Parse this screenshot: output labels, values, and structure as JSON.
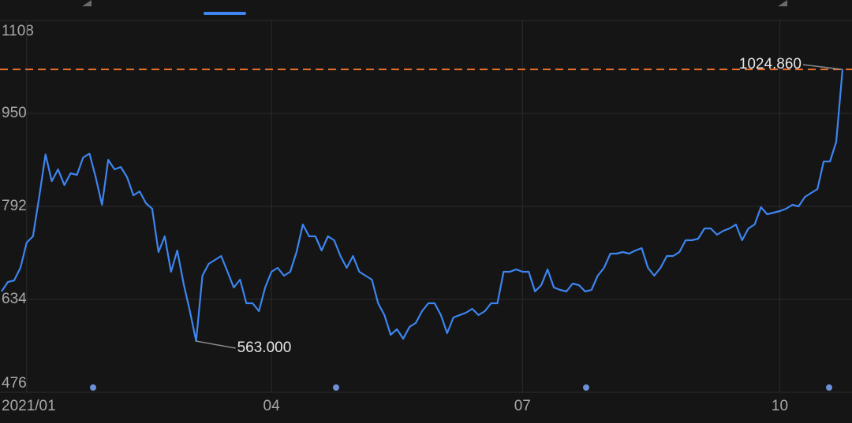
{
  "chart_data": {
    "type": "line",
    "color": "#3d85f0",
    "categories": [
      null,
      null,
      null,
      null,
      "2021/01",
      null,
      null,
      null,
      null,
      null,
      null,
      null,
      null,
      null,
      null,
      null,
      null,
      null,
      null,
      null,
      null,
      null,
      null,
      null,
      null,
      null,
      null,
      null,
      null,
      null,
      null,
      null,
      null,
      null,
      null,
      null,
      null,
      null,
      null,
      null,
      null,
      null,
      null,
      "04",
      null,
      null,
      null,
      null,
      null,
      null,
      null,
      null,
      null,
      null,
      null,
      null,
      null,
      null,
      null,
      null,
      null,
      null,
      null,
      null,
      null,
      null,
      null,
      null,
      null,
      null,
      null,
      null,
      null,
      null,
      null,
      null,
      null,
      null,
      null,
      null,
      null,
      null,
      null,
      "07",
      null,
      null,
      null,
      null,
      null,
      null,
      null,
      null,
      null,
      null,
      null,
      null,
      null,
      null,
      null,
      null,
      null,
      null,
      null,
      null,
      null,
      null,
      null,
      null,
      null,
      null,
      null,
      null,
      null,
      null,
      null,
      null,
      null,
      null,
      null,
      null,
      null,
      null,
      null,
      null,
      "10",
      null,
      null,
      null,
      null,
      null,
      null,
      null,
      null,
      null,
      null
    ],
    "values": [
      647.4,
      663.5,
      666.1,
      687.6,
      730.4,
      741.1,
      808.1,
      880.4,
      834.9,
      854.9,
      828.2,
      848.2,
      845.6,
      875.0,
      881.7,
      841.5,
      794.7,
      871.0,
      854.9,
      858.9,
      841.5,
      810.7,
      817.4,
      797.4,
      788.0,
      714.3,
      741.1,
      680.9,
      717.0,
      660.8,
      613.9,
      563,
      674.2,
      694.3,
      701.0,
      707.6,
      680.9,
      654.1,
      667.5,
      627.3,
      627.3,
      613.9,
      654.1,
      680.9,
      687.6,
      674.2,
      680.9,
      714.3,
      761.2,
      741.1,
      741.1,
      717.0,
      741.1,
      734.4,
      707.6,
      687.6,
      707.6,
      680.9,
      674.2,
      667.5,
      627.3,
      607.2,
      573.7,
      583.1,
      567.1,
      587.1,
      593.8,
      613.9,
      627.3,
      627.3,
      607.2,
      576.4,
      603.2,
      607.2,
      611.2,
      617.9,
      607.2,
      613.9,
      627.3,
      627.3,
      680.9,
      680.9,
      684.9,
      680.9,
      680.9,
      647.4,
      658.1,
      684.9,
      654.1,
      650.1,
      647.4,
      660.8,
      658.1,
      647.4,
      650.1,
      674.2,
      687.6,
      711.7,
      711.7,
      714.3,
      711.7,
      717.0,
      721.0,
      687.6,
      674.2,
      687.6,
      707.6,
      707.6,
      714.3,
      734.4,
      734.4,
      737.1,
      754.5,
      754.5,
      743.8,
      750.5,
      754.5,
      761.2,
      734.4,
      754.5,
      761.2,
      790.7,
      778.6,
      781.3,
      784.0,
      788.0,
      794.7,
      792.0,
      808.1,
      814.8,
      821.5,
      868.3,
      868.3,
      901.8,
      1024.86
    ],
    "ylim": [
      476,
      1108
    ],
    "yticks": [
      476,
      634,
      792,
      950,
      1108
    ],
    "grid": true,
    "annotations": [
      {
        "value": 563,
        "label": "563.000"
      },
      {
        "value": 1024.86,
        "label": "1024.860",
        "dashed_line": true,
        "line_color": "#e8702a"
      }
    ]
  }
}
